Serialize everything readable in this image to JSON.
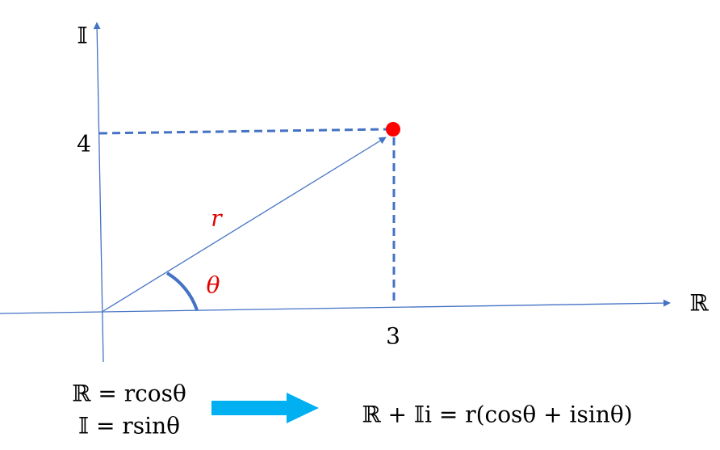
{
  "axes": {
    "imaginary_label": "𝕀",
    "real_label": "ℝ",
    "imaginary_tick": "4",
    "real_tick": "3"
  },
  "vector": {
    "magnitude_label": "r",
    "angle_label": "θ"
  },
  "equations": {
    "real_part": "ℝ = rcosθ",
    "imaginary_part": "𝕀 = rsinθ",
    "result": "ℝ + 𝕀i = r(cosθ + isinθ)"
  }
}
